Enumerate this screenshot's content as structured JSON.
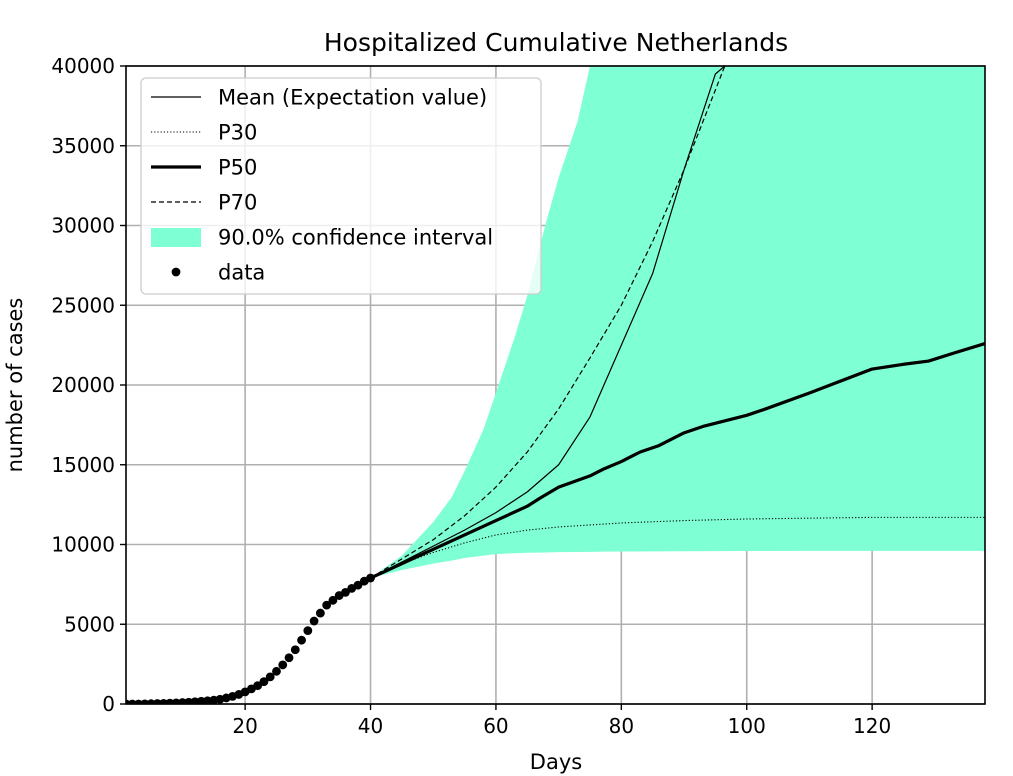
{
  "chart_data": {
    "type": "line",
    "title": "Hospitalized Cumulative Netherlands",
    "xlabel": "Days",
    "ylabel": "number of cases",
    "xlim": [
      1,
      138
    ],
    "ylim": [
      0,
      40000
    ],
    "grid": true,
    "legend_position": "top-left",
    "x_ticks": [
      20,
      40,
      60,
      80,
      100,
      120
    ],
    "x_tick_labels": [
      "20",
      "40",
      "60",
      "80",
      "100",
      "120"
    ],
    "y_ticks": [
      0,
      5000,
      10000,
      15000,
      20000,
      25000,
      30000,
      35000,
      40000
    ],
    "y_tick_labels": [
      "0",
      "5000",
      "10000",
      "15000",
      "20000",
      "25000",
      "30000",
      "35000",
      "40000"
    ],
    "colors": {
      "band": "#7fffd4",
      "line": "#000000",
      "grid": "#b0b0b0"
    },
    "series": [
      {
        "name": "Mean (Expectation value)",
        "style": "thin-solid",
        "x": [
          40,
          45,
          50,
          55,
          60,
          65,
          70,
          75,
          80,
          85,
          90,
          95,
          98
        ],
        "y": [
          7900,
          8900,
          9900,
          10900,
          12000,
          13300,
          15000,
          18000,
          22500,
          27000,
          33500,
          39500,
          40500
        ]
      },
      {
        "name": "P30",
        "style": "dotted",
        "x": [
          40,
          45,
          50,
          55,
          60,
          65,
          70,
          80,
          90,
          100,
          110,
          120,
          138
        ],
        "y": [
          7900,
          8800,
          9500,
          10100,
          10600,
          10900,
          11100,
          11350,
          11500,
          11600,
          11650,
          11700,
          11700
        ]
      },
      {
        "name": "P50",
        "style": "thick-solid",
        "x": [
          40,
          45,
          50,
          55,
          60,
          65,
          67,
          70,
          75,
          77,
          80,
          83,
          86,
          90,
          93,
          100,
          103,
          110,
          114,
          120,
          125,
          129,
          133,
          138
        ],
        "y": [
          7900,
          8800,
          9700,
          10600,
          11500,
          12400,
          12900,
          13600,
          14300,
          14700,
          15200,
          15800,
          16200,
          17000,
          17400,
          18100,
          18500,
          19500,
          20100,
          21000,
          21300,
          21500,
          22000,
          22600
        ]
      },
      {
        "name": "P70",
        "style": "dashed",
        "x": [
          40,
          45,
          50,
          55,
          60,
          65,
          70,
          75,
          80,
          85,
          90,
          95,
          97
        ],
        "y": [
          7900,
          9100,
          10300,
          11800,
          13600,
          15800,
          18500,
          21700,
          25000,
          29000,
          33500,
          38500,
          40500
        ]
      }
    ],
    "confidence_band": {
      "name": "90.0% confidence interval",
      "x": [
        40,
        45,
        50,
        53,
        55,
        58,
        60,
        63,
        65,
        68,
        70,
        73,
        75,
        77,
        80,
        90,
        100,
        110,
        120,
        130,
        138
      ],
      "lower": [
        7900,
        8400,
        8800,
        9000,
        9150,
        9300,
        9400,
        9450,
        9480,
        9500,
        9520,
        9530,
        9540,
        9550,
        9560,
        9580,
        9590,
        9600,
        9600,
        9600,
        9600
      ],
      "upper": [
        7900,
        9300,
        11400,
        13000,
        14600,
        17200,
        19500,
        23000,
        25600,
        30200,
        33000,
        36500,
        40000,
        40000,
        40000,
        40000,
        40000,
        40000,
        40000,
        40000,
        40000
      ]
    },
    "data_points": {
      "name": "data",
      "x": [
        1,
        2,
        3,
        4,
        5,
        6,
        7,
        8,
        9,
        10,
        11,
        12,
        13,
        14,
        15,
        16,
        17,
        18,
        19,
        20,
        21,
        22,
        23,
        24,
        25,
        26,
        27,
        28,
        29,
        30,
        31,
        32,
        33,
        34,
        35,
        36,
        37,
        38,
        39,
        40
      ],
      "y": [
        0,
        0,
        0,
        10,
        20,
        30,
        40,
        55,
        70,
        90,
        110,
        140,
        170,
        200,
        240,
        300,
        380,
        480,
        600,
        760,
        950,
        1150,
        1400,
        1700,
        2050,
        2450,
        2900,
        3400,
        4000,
        4600,
        5200,
        5700,
        6200,
        6500,
        6800,
        7000,
        7250,
        7450,
        7700,
        7900
      ]
    }
  }
}
